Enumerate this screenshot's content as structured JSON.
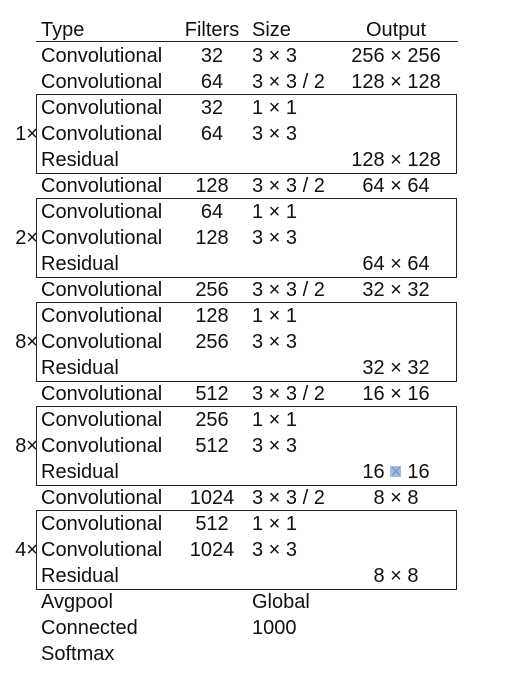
{
  "header": {
    "type": "Type",
    "filters": "Filters",
    "size": "Size",
    "output": "Output"
  },
  "rows": [
    {
      "type": "Convolutional",
      "filters": "32",
      "size": "3 × 3",
      "output": "256 × 256",
      "mult": ""
    },
    {
      "type": "Convolutional",
      "filters": "64",
      "size": "3 × 3 / 2",
      "output": "128 × 128",
      "mult": ""
    },
    {
      "type": "Convolutional",
      "filters": "32",
      "size": "1 × 1",
      "output": "",
      "mult": ""
    },
    {
      "type": "Convolutional",
      "filters": "64",
      "size": "3 × 3",
      "output": "",
      "mult": "1×"
    },
    {
      "type": "Residual",
      "filters": "",
      "size": "",
      "output": "128 × 128",
      "mult": ""
    },
    {
      "type": "Convolutional",
      "filters": "128",
      "size": "3 × 3 / 2",
      "output": "64 × 64",
      "mult": ""
    },
    {
      "type": "Convolutional",
      "filters": "64",
      "size": "1 × 1",
      "output": "",
      "mult": ""
    },
    {
      "type": "Convolutional",
      "filters": "128",
      "size": "3 × 3",
      "output": "",
      "mult": "2×"
    },
    {
      "type": "Residual",
      "filters": "",
      "size": "",
      "output": "64 × 64",
      "mult": ""
    },
    {
      "type": "Convolutional",
      "filters": "256",
      "size": "3 × 3 / 2",
      "output": "32 × 32",
      "mult": ""
    },
    {
      "type": "Convolutional",
      "filters": "128",
      "size": "1 × 1",
      "output": "",
      "mult": ""
    },
    {
      "type": "Convolutional",
      "filters": "256",
      "size": "3 × 3",
      "output": "",
      "mult": "8×"
    },
    {
      "type": "Residual",
      "filters": "",
      "size": "",
      "output": "32 × 32",
      "mult": ""
    },
    {
      "type": "Convolutional",
      "filters": "512",
      "size": "3 × 3 / 2",
      "output": "16 × 16",
      "mult": ""
    },
    {
      "type": "Convolutional",
      "filters": "256",
      "size": "1 × 1",
      "output": "",
      "mult": ""
    },
    {
      "type": "Convolutional",
      "filters": "512",
      "size": "3 × 3",
      "output": "",
      "mult": "8×"
    },
    {
      "type": "Residual",
      "filters": "",
      "size": "",
      "output": "16 × 16",
      "mult": ""
    },
    {
      "type": "Convolutional",
      "filters": "1024",
      "size": "3 × 3 / 2",
      "output": "8 × 8",
      "mult": ""
    },
    {
      "type": "Convolutional",
      "filters": "512",
      "size": "1 × 1",
      "output": "",
      "mult": ""
    },
    {
      "type": "Convolutional",
      "filters": "1024",
      "size": "3 × 3",
      "output": "",
      "mult": "4×"
    },
    {
      "type": "Residual",
      "filters": "",
      "size": "",
      "output": "8 × 8",
      "mult": ""
    },
    {
      "type": "Avgpool",
      "filters": "",
      "size": "Global",
      "output": "",
      "mult": ""
    },
    {
      "type": "Connected",
      "filters": "",
      "size": "1000",
      "output": "",
      "mult": ""
    },
    {
      "type": "Softmax",
      "filters": "",
      "size": "",
      "output": "",
      "mult": ""
    }
  ]
}
